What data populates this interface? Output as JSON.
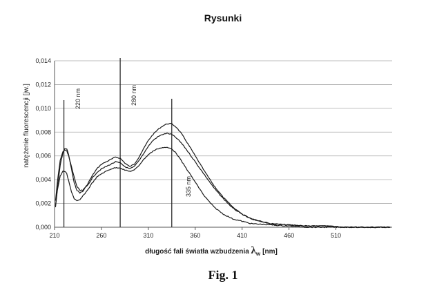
{
  "page": {
    "heading": "Rysunki",
    "figure_caption": "Fig. 1"
  },
  "chart_data": {
    "type": "line",
    "title": "",
    "xlabel": "długość fali światła wzbudzenia",
    "xlabel_symbol": "λ",
    "xlabel_subscript": "w",
    "xlabel_unit": "[nm]",
    "ylabel": "natężenie fluorescencji  [jw.]",
    "xlim": [
      210,
      570
    ],
    "ylim": [
      0,
      0.014
    ],
    "x_ticks": [
      210,
      260,
      310,
      360,
      410,
      460,
      510
    ],
    "y_ticks": [
      "0,000",
      "0,002",
      "0,004",
      "0,006",
      "0,008",
      "0,010",
      "0,012",
      "0,014"
    ],
    "grid": true,
    "reference_lines": [
      {
        "x": 220,
        "label": "220 nm"
      },
      {
        "x": 280,
        "label": "280 nm"
      },
      {
        "x": 335,
        "label": "335 nm"
      }
    ],
    "series": [
      {
        "x": [
          211,
          213,
          216,
          219,
          221,
          223,
          225,
          228,
          231,
          234,
          237,
          240,
          245,
          250,
          255,
          260,
          265,
          270,
          275,
          280,
          285,
          290,
          295,
          300,
          305,
          310,
          315,
          320,
          325,
          330,
          335,
          340,
          345,
          350,
          360,
          370,
          380,
          390,
          400,
          410,
          420,
          440,
          460,
          480,
          500,
          520,
          540,
          560,
          568
        ],
        "y": [
          0.0018,
          0.0032,
          0.0052,
          0.0063,
          0.0066,
          0.0066,
          0.0061,
          0.0049,
          0.0037,
          0.0031,
          0.0029,
          0.003,
          0.0036,
          0.0043,
          0.0049,
          0.0053,
          0.0055,
          0.0057,
          0.0059,
          0.0058,
          0.0054,
          0.0051,
          0.0053,
          0.0059,
          0.0066,
          0.0073,
          0.0078,
          0.0082,
          0.0085,
          0.0087,
          0.0087,
          0.0084,
          0.0079,
          0.0073,
          0.006,
          0.0047,
          0.0035,
          0.0025,
          0.0017,
          0.0011,
          0.0007,
          0.0003,
          0.0002,
          0.0001,
          0.0001,
          0.0,
          0.0,
          0.0,
          0.0
        ]
      },
      {
        "x": [
          211,
          213,
          216,
          219,
          221,
          223,
          225,
          228,
          231,
          234,
          237,
          240,
          245,
          250,
          255,
          260,
          265,
          270,
          275,
          280,
          285,
          290,
          295,
          300,
          305,
          310,
          315,
          320,
          325,
          330,
          335,
          340,
          345,
          350,
          360,
          370,
          380,
          390,
          400,
          410,
          420,
          440,
          460,
          480,
          500,
          520,
          540,
          560,
          568
        ],
        "y": [
          0.0022,
          0.0038,
          0.0056,
          0.0064,
          0.0065,
          0.0064,
          0.006,
          0.0051,
          0.0042,
          0.0034,
          0.0031,
          0.0031,
          0.0035,
          0.0041,
          0.0046,
          0.0049,
          0.0051,
          0.0053,
          0.0055,
          0.0054,
          0.0051,
          0.0049,
          0.0051,
          0.0056,
          0.0062,
          0.0068,
          0.0073,
          0.0076,
          0.0078,
          0.0079,
          0.0078,
          0.0075,
          0.0071,
          0.0066,
          0.0055,
          0.0044,
          0.0033,
          0.0024,
          0.0016,
          0.0011,
          0.0007,
          0.0003,
          0.0002,
          0.0001,
          0.0001,
          0.0,
          0.0,
          0.0,
          0.0
        ]
      },
      {
        "x": [
          211,
          213,
          216,
          219,
          221,
          223,
          225,
          228,
          231,
          234,
          237,
          240,
          245,
          250,
          255,
          260,
          265,
          270,
          275,
          280,
          285,
          290,
          295,
          300,
          305,
          310,
          315,
          320,
          325,
          330,
          335,
          340,
          345,
          350,
          360,
          370,
          380,
          390,
          400,
          410,
          420,
          440,
          460,
          480,
          500,
          520,
          540,
          560,
          568
        ],
        "y": [
          0.0017,
          0.0031,
          0.0043,
          0.0047,
          0.0047,
          0.0045,
          0.0039,
          0.003,
          0.0024,
          0.0022,
          0.0023,
          0.0026,
          0.0031,
          0.0037,
          0.0042,
          0.0045,
          0.0047,
          0.0049,
          0.005,
          0.005,
          0.0048,
          0.0047,
          0.0048,
          0.0052,
          0.0057,
          0.0061,
          0.0064,
          0.0066,
          0.0067,
          0.0067,
          0.0066,
          0.0062,
          0.0056,
          0.005,
          0.0038,
          0.0026,
          0.0017,
          0.0011,
          0.0007,
          0.0005,
          0.0003,
          0.0002,
          0.0001,
          0.0,
          0.0,
          0.0,
          0.0,
          0.0,
          0.0
        ]
      }
    ]
  },
  "colors": {
    "line": "#1a1a1a",
    "grid": "#a8a8a8",
    "axis": "#555555"
  }
}
